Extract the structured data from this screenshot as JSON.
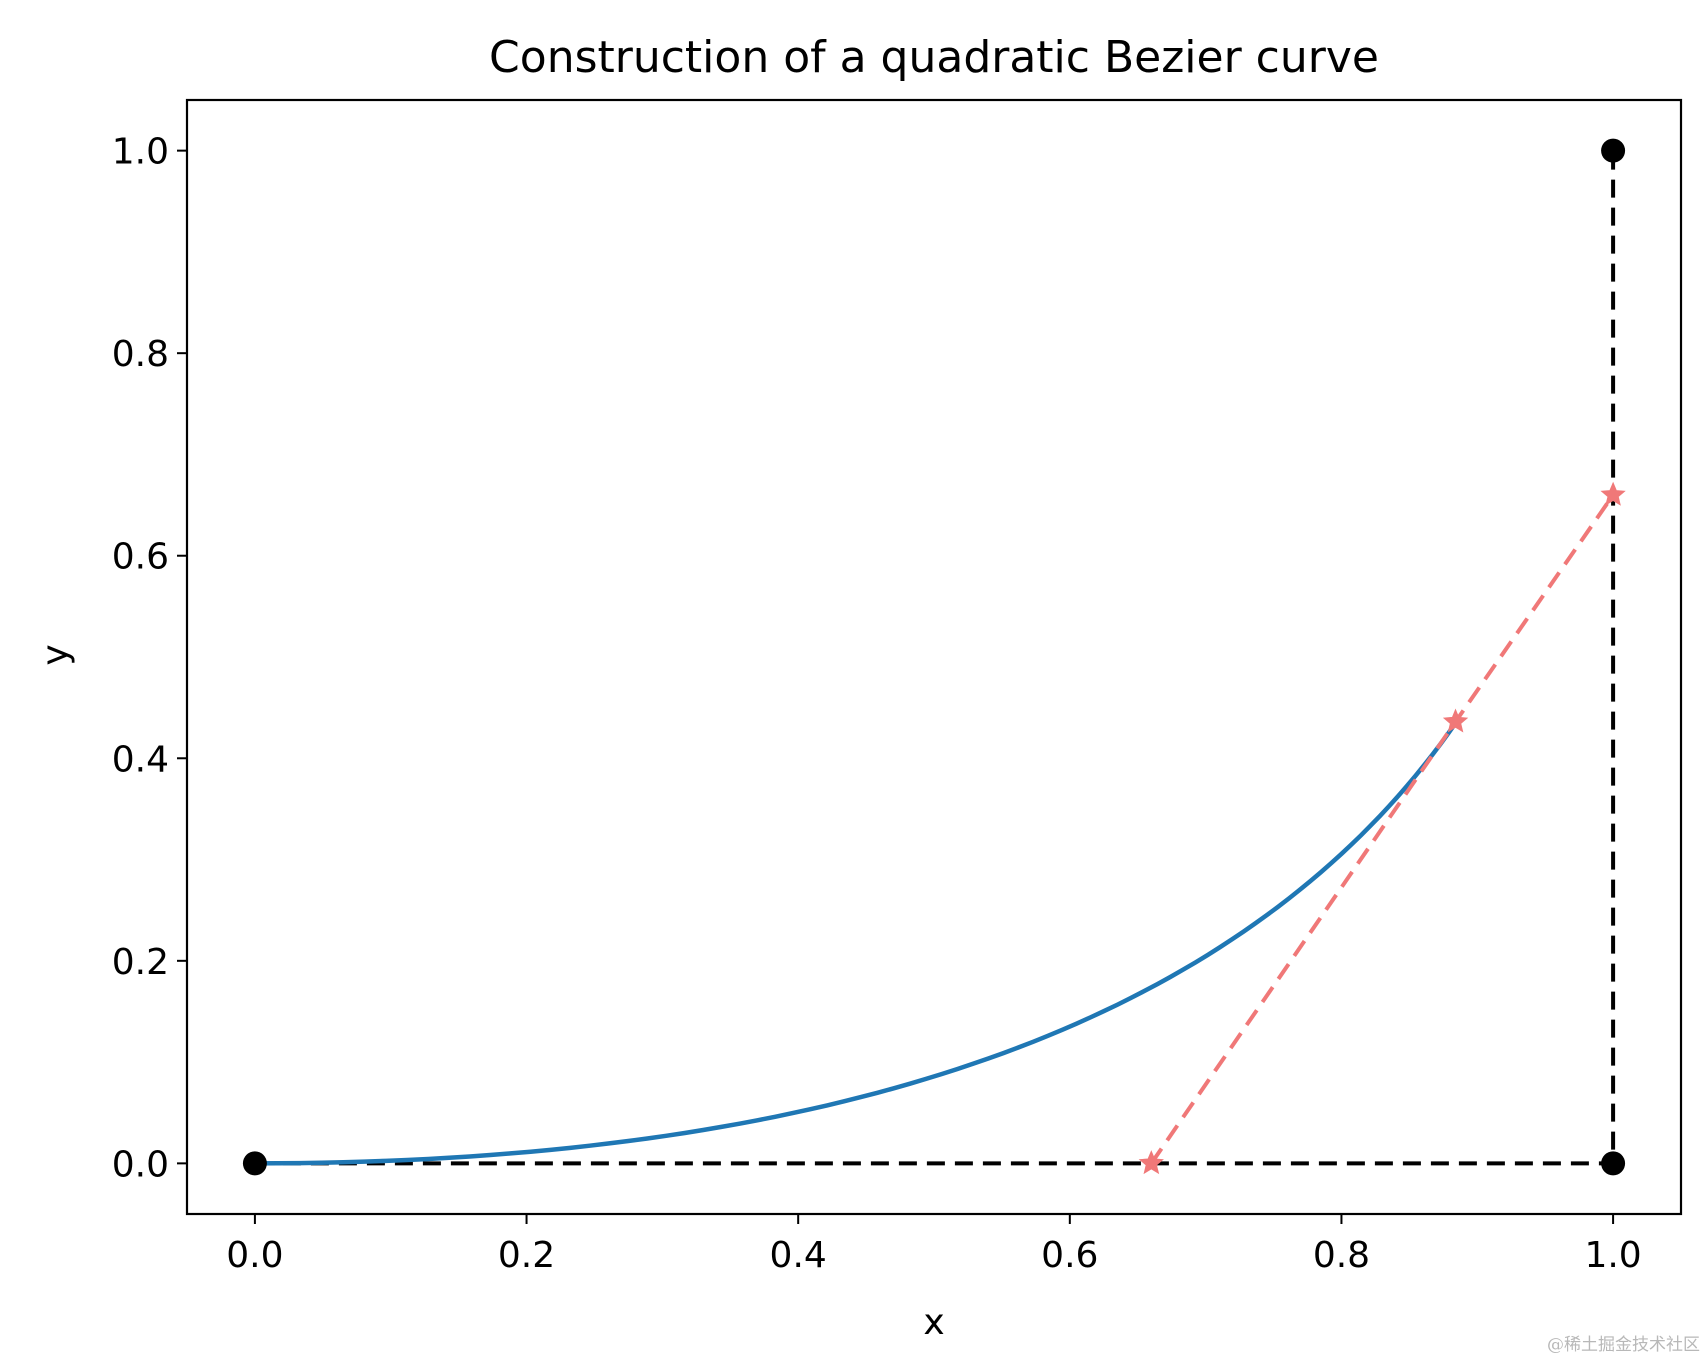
{
  "chart_data": {
    "type": "line",
    "title": "Construction of a quadratic Bezier curve",
    "xlabel": "x",
    "ylabel": "y",
    "xlim": [
      -0.05,
      1.05
    ],
    "ylim": [
      -0.05,
      1.05
    ],
    "xticks": [
      0.0,
      0.2,
      0.4,
      0.6,
      0.8,
      1.0
    ],
    "yticks": [
      0.0,
      0.2,
      0.4,
      0.6,
      0.8,
      1.0
    ],
    "tick_labels": [
      "0.0",
      "0.2",
      "0.4",
      "0.6",
      "0.8",
      "1.0"
    ],
    "grid": false,
    "control_points": [
      {
        "x": 0.0,
        "y": 0.0
      },
      {
        "x": 1.0,
        "y": 0.0
      },
      {
        "x": 1.0,
        "y": 1.0
      }
    ],
    "control_polygon_color": "#000000",
    "curve": {
      "color": "#1f77b4",
      "t_max": 0.66,
      "points": [
        {
          "x": 0.0,
          "y": 0.0
        },
        {
          "x": 0.1,
          "y": 0.0
        },
        {
          "x": 0.2,
          "y": 0.01
        },
        {
          "x": 0.3,
          "y": 0.025
        },
        {
          "x": 0.4,
          "y": 0.05
        },
        {
          "x": 0.5,
          "y": 0.085
        },
        {
          "x": 0.6,
          "y": 0.135
        },
        {
          "x": 0.7,
          "y": 0.205
        },
        {
          "x": 0.8,
          "y": 0.305
        },
        {
          "x": 0.884,
          "y": 0.436
        }
      ]
    },
    "construction_line": {
      "color": "#f07878",
      "points": [
        {
          "x": 0.66,
          "y": 0.0
        },
        {
          "x": 0.884,
          "y": 0.436
        },
        {
          "x": 1.0,
          "y": 0.66
        }
      ]
    }
  },
  "watermark": "@稀土掘金技术社区"
}
